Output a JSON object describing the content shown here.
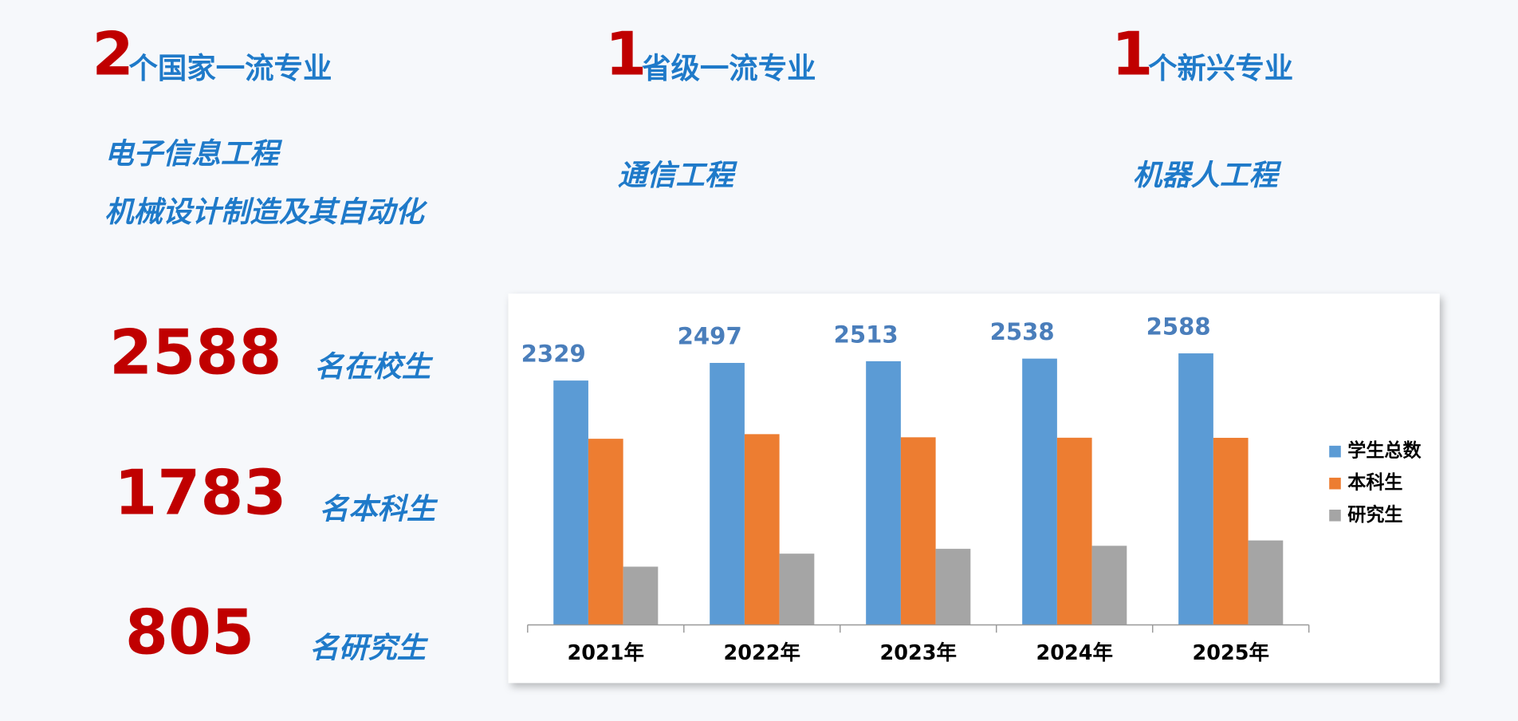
{
  "highlights": [
    {
      "count": 2,
      "text": "个国家一流专业",
      "majors": [
        "电子信息工程",
        "机械设计制造及其自动化"
      ]
    },
    {
      "count": 1,
      "text": "省级一流专业",
      "majors": [
        "通信工程"
      ]
    },
    {
      "count": 1,
      "text": "个新兴专业",
      "majors": [
        "机器人工程"
      ]
    }
  ],
  "stats": [
    {
      "value": 2588,
      "label": "名在校生"
    },
    {
      "value": 1783,
      "label": "名本科生"
    },
    {
      "value": 805,
      "label": "名研究生"
    }
  ],
  "chart_data": {
    "type": "bar",
    "categories": [
      "2021年",
      "2022年",
      "2023年",
      "2024年",
      "2025年"
    ],
    "series": [
      {
        "name": "学生总数",
        "color": "#5b9bd5",
        "values": [
          2329,
          2497,
          2513,
          2538,
          2588
        ]
      },
      {
        "name": "本科生",
        "color": "#ed7d31",
        "values": [
          1774,
          1818,
          1788,
          1784,
          1783
        ]
      },
      {
        "name": "研究生",
        "color": "#a5a5a5",
        "values": [
          555,
          679,
          725,
          754,
          805
        ]
      }
    ],
    "ylim": [
      0,
      3000
    ],
    "label_series": 0,
    "legend": "right"
  }
}
